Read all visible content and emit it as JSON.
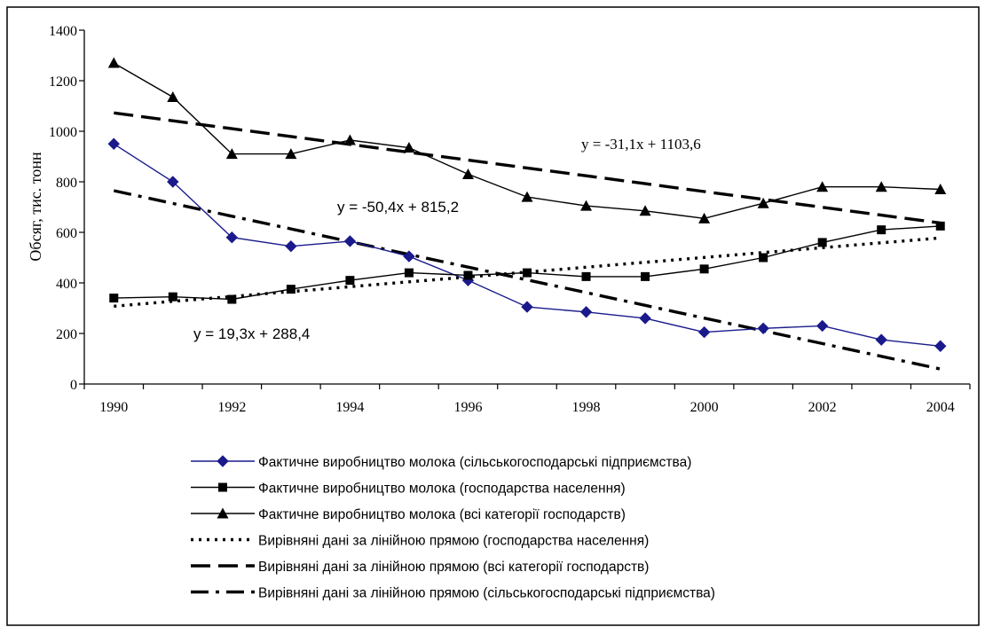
{
  "chart_data": {
    "type": "line",
    "title": "",
    "xlabel": "",
    "ylabel": "Обсяг, тис. тонн",
    "xlim": [
      1990,
      2004
    ],
    "ylim": [
      0,
      1400
    ],
    "x_ticks": [
      1990,
      1992,
      1994,
      1996,
      1998,
      2000,
      2002,
      2004
    ],
    "y_ticks": [
      0,
      200,
      400,
      600,
      800,
      1000,
      1200,
      1400
    ],
    "grid": false,
    "legend_position": "bottom",
    "x": [
      1990,
      1991,
      1992,
      1993,
      1994,
      1995,
      1996,
      1997,
      1998,
      1999,
      2000,
      2001,
      2002,
      2003,
      2004
    ],
    "series": [
      {
        "name": "Фактичне виробництво молока (сільськогосподарські підприємства)",
        "style": "solid",
        "marker": "diamond",
        "color": "#1a1a8c",
        "values": [
          950,
          800,
          580,
          545,
          565,
          505,
          410,
          305,
          285,
          260,
          205,
          220,
          230,
          175,
          150
        ]
      },
      {
        "name": "Фактичне виробництво молока (господарства населення)",
        "style": "solid",
        "marker": "square",
        "color": "#000000",
        "values": [
          340,
          345,
          335,
          375,
          410,
          440,
          430,
          440,
          425,
          425,
          455,
          500,
          560,
          610,
          625
        ]
      },
      {
        "name": "Фактичне виробництво молока (всі категорії господарств)",
        "style": "solid",
        "marker": "triangle",
        "color": "#000000",
        "values": [
          1270,
          1135,
          910,
          910,
          965,
          935,
          830,
          740,
          705,
          685,
          655,
          715,
          780,
          780,
          770
        ]
      },
      {
        "name": "Вирівняні дані за лінійною прямою (господарства населення)",
        "style": "dotted",
        "marker": "none",
        "color": "#000000",
        "trend": {
          "slope": 19.3,
          "intercept": 288.4
        }
      },
      {
        "name": "Вирівняні дані за лінійною прямою (всі категорії господарств)",
        "style": "dashed",
        "marker": "none",
        "color": "#000000",
        "trend": {
          "slope": -31.1,
          "intercept": 1103.6
        }
      },
      {
        "name": "Вирівняні дані за лінійною прямою (сільськогосподарські підприємства)",
        "style": "dashdot",
        "marker": "none",
        "color": "#000000",
        "trend": {
          "slope": -50.4,
          "intercept": 815.2
        }
      }
    ],
    "annotations": [
      {
        "text": "y = -31,1x + 1103,6",
        "font": "serif"
      },
      {
        "text": "y = -50,4x + 815,2",
        "font": "sans"
      },
      {
        "text": "y = 19,3x + 288,4",
        "font": "sans"
      }
    ]
  }
}
